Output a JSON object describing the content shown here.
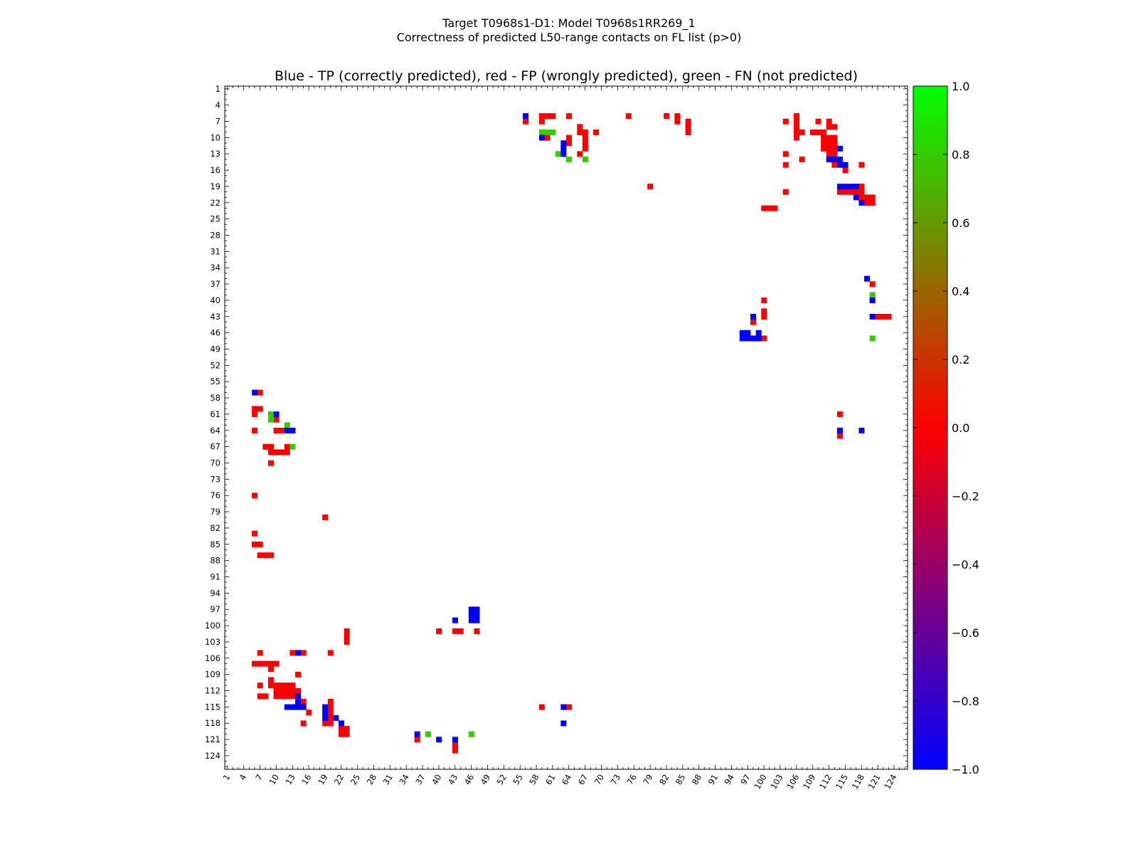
{
  "chart_data": {
    "type": "heatmap",
    "suptitle_line1": "Target T0968s1-D1: Model T0968s1RR269_1",
    "suptitle_line2": "Correctness of predicted L50-range contacts on FL list (p>0)",
    "title": "Blue - TP (correctly predicted), red - FP (wrongly predicted), green - FN (not predicted)",
    "xlabel": "",
    "ylabel": "",
    "xlim": [
      1,
      126
    ],
    "ylim": [
      1,
      126
    ],
    "x_tick_labels": [
      "1",
      "4",
      "7",
      "10",
      "13",
      "16",
      "19",
      "22",
      "25",
      "28",
      "31",
      "34",
      "37",
      "40",
      "43",
      "46",
      "49",
      "52",
      "55",
      "58",
      "61",
      "64",
      "67",
      "70",
      "73",
      "76",
      "79",
      "82",
      "85",
      "88",
      "91",
      "94",
      "97",
      "100",
      "103",
      "106",
      "109",
      "112",
      "115",
      "118",
      "121",
      "124"
    ],
    "y_tick_labels": [
      "1",
      "4",
      "7",
      "10",
      "13",
      "16",
      "19",
      "22",
      "25",
      "28",
      "31",
      "34",
      "37",
      "40",
      "43",
      "46",
      "49",
      "52",
      "55",
      "58",
      "61",
      "64",
      "67",
      "70",
      "73",
      "76",
      "79",
      "82",
      "85",
      "88",
      "91",
      "94",
      "97",
      "100",
      "103",
      "106",
      "109",
      "112",
      "115",
      "118",
      "121",
      "124"
    ],
    "colorbar": {
      "min": -1.0,
      "max": 1.0,
      "tick_labels": [
        "1.0",
        "0.8",
        "0.6",
        "0.4",
        "0.2",
        "0.0",
        "−0.2",
        "−0.4",
        "−0.6",
        "−0.8",
        "−1.0"
      ],
      "colors": [
        "#0000ff",
        "#ff0000",
        "#00ff00"
      ]
    },
    "colors": {
      "TP": "#0000ff",
      "FP": "#ff0000",
      "FN": "#33cc00"
    },
    "cells": {
      "TP": [
        [
          56,
          6
        ],
        [
          59,
          10
        ],
        [
          63,
          11
        ],
        [
          63,
          12
        ],
        [
          63,
          13
        ],
        [
          114,
          12
        ],
        [
          112,
          14
        ],
        [
          113,
          14
        ],
        [
          114,
          14
        ],
        [
          114,
          15
        ],
        [
          115,
          15
        ],
        [
          114,
          19
        ],
        [
          115,
          19
        ],
        [
          116,
          19
        ],
        [
          117,
          19
        ],
        [
          117,
          21
        ],
        [
          118,
          22
        ],
        [
          119,
          36
        ],
        [
          120,
          40
        ],
        [
          120,
          43
        ],
        [
          98,
          43
        ],
        [
          96,
          46
        ],
        [
          97,
          46
        ],
        [
          99,
          46
        ],
        [
          96,
          47
        ],
        [
          97,
          47
        ],
        [
          98,
          47
        ],
        [
          99,
          47
        ],
        [
          114,
          64
        ],
        [
          118,
          64
        ],
        [
          6,
          57
        ],
        [
          10,
          61
        ],
        [
          12,
          64
        ],
        [
          13,
          64
        ],
        [
          14,
          105
        ],
        [
          14,
          113
        ],
        [
          14,
          114
        ],
        [
          12,
          115
        ],
        [
          13,
          115
        ],
        [
          15,
          115
        ],
        [
          14,
          115
        ],
        [
          19,
          115
        ],
        [
          19,
          116
        ],
        [
          19,
          117
        ],
        [
          21,
          117
        ],
        [
          22,
          118
        ],
        [
          36,
          120
        ],
        [
          40,
          121
        ],
        [
          43,
          121
        ],
        [
          43,
          99
        ],
        [
          46,
          97
        ],
        [
          47,
          97
        ],
        [
          46,
          98
        ],
        [
          47,
          98
        ],
        [
          46,
          99
        ],
        [
          47,
          99
        ],
        [
          63,
          115
        ],
        [
          63,
          118
        ]
      ],
      "FP": [
        [
          56,
          7
        ],
        [
          59,
          6
        ],
        [
          60,
          6
        ],
        [
          61,
          6
        ],
        [
          59,
          7
        ],
        [
          64,
          6
        ],
        [
          75,
          6
        ],
        [
          82,
          6
        ],
        [
          84,
          6
        ],
        [
          84,
          7
        ],
        [
          86,
          7
        ],
        [
          86,
          8
        ],
        [
          86,
          9
        ],
        [
          60,
          10
        ],
        [
          64,
          10
        ],
        [
          64,
          11
        ],
        [
          66,
          8
        ],
        [
          66,
          9
        ],
        [
          67,
          9
        ],
        [
          67,
          10
        ],
        [
          67,
          11
        ],
        [
          67,
          12
        ],
        [
          69,
          9
        ],
        [
          66,
          13
        ],
        [
          79,
          19
        ],
        [
          104,
          7
        ],
        [
          106,
          6
        ],
        [
          106,
          7
        ],
        [
          106,
          8
        ],
        [
          106,
          9
        ],
        [
          106,
          10
        ],
        [
          107,
          9
        ],
        [
          109,
          9
        ],
        [
          110,
          7
        ],
        [
          110,
          9
        ],
        [
          111,
          9
        ],
        [
          111,
          10
        ],
        [
          111,
          11
        ],
        [
          111,
          12
        ],
        [
          112,
          7
        ],
        [
          112,
          8
        ],
        [
          112,
          10
        ],
        [
          112,
          11
        ],
        [
          112,
          12
        ],
        [
          112,
          13
        ],
        [
          113,
          8
        ],
        [
          113,
          10
        ],
        [
          113,
          11
        ],
        [
          113,
          12
        ],
        [
          113,
          13
        ],
        [
          104,
          13
        ],
        [
          104,
          15
        ],
        [
          107,
          14
        ],
        [
          113,
          15
        ],
        [
          115,
          16
        ],
        [
          118,
          15
        ],
        [
          104,
          20
        ],
        [
          114,
          20
        ],
        [
          115,
          20
        ],
        [
          116,
          20
        ],
        [
          117,
          20
        ],
        [
          118,
          20
        ],
        [
          118,
          19
        ],
        [
          118,
          21
        ],
        [
          119,
          21
        ],
        [
          120,
          21
        ],
        [
          120,
          22
        ],
        [
          119,
          22
        ],
        [
          100,
          23
        ],
        [
          101,
          23
        ],
        [
          102,
          23
        ],
        [
          120,
          37
        ],
        [
          100,
          40
        ],
        [
          100,
          42
        ],
        [
          100,
          43
        ],
        [
          98,
          44
        ],
        [
          97,
          46
        ],
        [
          100,
          47
        ],
        [
          121,
          43
        ],
        [
          122,
          43
        ],
        [
          123,
          43
        ],
        [
          114,
          61
        ],
        [
          114,
          65
        ],
        [
          7,
          57
        ],
        [
          6,
          60
        ],
        [
          7,
          60
        ],
        [
          6,
          61
        ],
        [
          10,
          62
        ],
        [
          6,
          64
        ],
        [
          10,
          64
        ],
        [
          11,
          64
        ],
        [
          8,
          67
        ],
        [
          9,
          67
        ],
        [
          9,
          68
        ],
        [
          10,
          68
        ],
        [
          11,
          68
        ],
        [
          12,
          68
        ],
        [
          12,
          67
        ],
        [
          9,
          70
        ],
        [
          6,
          76
        ],
        [
          19,
          80
        ],
        [
          6,
          83
        ],
        [
          6,
          85
        ],
        [
          7,
          85
        ],
        [
          7,
          87
        ],
        [
          8,
          87
        ],
        [
          9,
          87
        ],
        [
          23,
          101
        ],
        [
          23,
          102
        ],
        [
          23,
          103
        ],
        [
          40,
          101
        ],
        [
          43,
          101
        ],
        [
          44,
          101
        ],
        [
          47,
          101
        ],
        [
          46,
          97
        ],
        [
          7,
          105
        ],
        [
          13,
          105
        ],
        [
          15,
          105
        ],
        [
          20,
          105
        ],
        [
          6,
          107
        ],
        [
          7,
          107
        ],
        [
          8,
          107
        ],
        [
          9,
          107
        ],
        [
          10,
          107
        ],
        [
          9,
          108
        ],
        [
          14,
          109
        ],
        [
          9,
          110
        ],
        [
          9,
          111
        ],
        [
          10,
          111
        ],
        [
          11,
          111
        ],
        [
          12,
          111
        ],
        [
          13,
          111
        ],
        [
          7,
          111
        ],
        [
          10,
          112
        ],
        [
          11,
          112
        ],
        [
          12,
          112
        ],
        [
          13,
          112
        ],
        [
          14,
          112
        ],
        [
          10,
          113
        ],
        [
          11,
          113
        ],
        [
          12,
          113
        ],
        [
          13,
          113
        ],
        [
          7,
          113
        ],
        [
          8,
          113
        ],
        [
          15,
          114
        ],
        [
          20,
          114
        ],
        [
          20,
          115
        ],
        [
          20,
          116
        ],
        [
          20,
          117
        ],
        [
          20,
          118
        ],
        [
          19,
          118
        ],
        [
          16,
          116
        ],
        [
          15,
          118
        ],
        [
          22,
          118
        ],
        [
          23,
          119
        ],
        [
          22,
          119
        ],
        [
          22,
          120
        ],
        [
          23,
          120
        ],
        [
          36,
          121
        ],
        [
          43,
          122
        ],
        [
          43,
          123
        ],
        [
          59,
          115
        ],
        [
          64,
          115
        ]
      ],
      "FN": [
        [
          59,
          9
        ],
        [
          60,
          9
        ],
        [
          61,
          9
        ],
        [
          62,
          13
        ],
        [
          64,
          14
        ],
        [
          67,
          14
        ],
        [
          120,
          39
        ],
        [
          120,
          47
        ],
        [
          9,
          61
        ],
        [
          9,
          62
        ],
        [
          12,
          63
        ],
        [
          13,
          64
        ],
        [
          13,
          67
        ],
        [
          38,
          120
        ],
        [
          46,
          120
        ]
      ]
    }
  }
}
